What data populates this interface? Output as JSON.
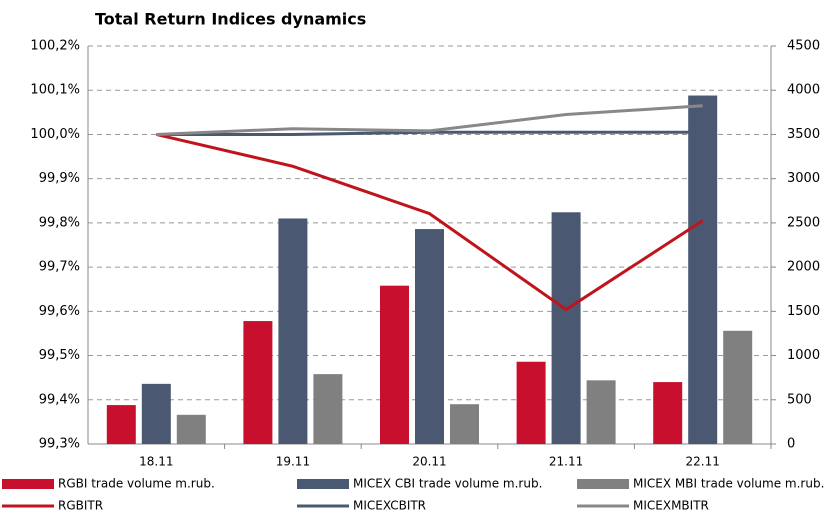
{
  "chart_data": {
    "type": "bar",
    "title": "Total Return Indices dynamics",
    "categories": [
      "18.11",
      "19.11",
      "20.11",
      "21.11",
      "22.11"
    ],
    "ylim": [
      99.3,
      100.2
    ],
    "yticks": [
      {
        "value": 99.3,
        "label": "99,3%"
      },
      {
        "value": 99.4,
        "label": "99,4%"
      },
      {
        "value": 99.5,
        "label": "99,5%"
      },
      {
        "value": 99.6,
        "label": "99,6%"
      },
      {
        "value": 99.7,
        "label": "99,7%"
      },
      {
        "value": 99.8,
        "label": "99,8%"
      },
      {
        "value": 99.9,
        "label": "99,9%"
      },
      {
        "value": 100.0,
        "label": "100,0%"
      },
      {
        "value": 100.1,
        "label": "100,1%"
      },
      {
        "value": 100.2,
        "label": "100,2%"
      }
    ],
    "y2lim": [
      0,
      4500
    ],
    "y2ticks": [
      0,
      500,
      1000,
      1500,
      2000,
      2500,
      3000,
      3500,
      4000,
      4500
    ],
    "grid": true,
    "legend": "bottom",
    "series": [
      {
        "name": "RGBI trade volume m.rub.",
        "type": "bar",
        "axis": "y2",
        "color": "#c8102e",
        "values": [
          440,
          1390,
          1790,
          930,
          700
        ]
      },
      {
        "name": "MICEX CBI trade volume m.rub.",
        "type": "bar",
        "axis": "y2",
        "color": "#4a5872",
        "values": [
          680,
          2550,
          2430,
          2620,
          3940
        ]
      },
      {
        "name": "MICEX MBI trade volume m.rub.",
        "type": "bar",
        "axis": "y2",
        "color": "#808080",
        "values": [
          330,
          790,
          450,
          720,
          1280
        ]
      },
      {
        "name": "RGBITR",
        "type": "line",
        "color": "#c0141c",
        "values": [
          100.0,
          99.928,
          99.821,
          99.604,
          99.805
        ]
      },
      {
        "name": "MICEXCBITR",
        "type": "line",
        "color": "#4a5872",
        "values": [
          100.0,
          100.0,
          100.005,
          100.005,
          100.005
        ]
      },
      {
        "name": "MICEXMBITR",
        "type": "line",
        "color": "#888888",
        "values": [
          100.0,
          100.013,
          100.008,
          100.045,
          100.065
        ]
      }
    ]
  }
}
